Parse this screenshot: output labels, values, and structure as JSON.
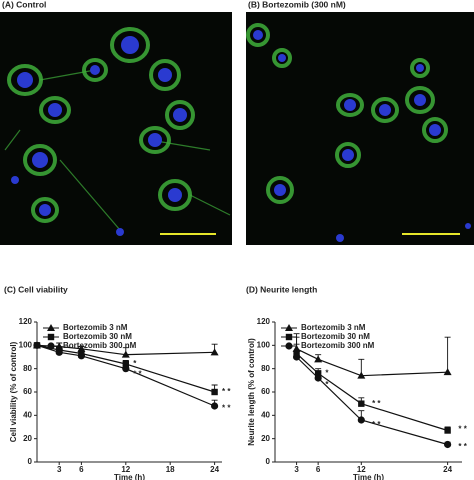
{
  "panels": [
    {
      "label": "(A) Control"
    },
    {
      "label": "(B) Bortezomib (300 nM)"
    }
  ],
  "chart_data": [
    {
      "type": "line",
      "title": "(C) Cell viability",
      "x_label": "Time (h)",
      "y_label": "Cell viability (% of control)",
      "x": [
        0,
        3,
        6,
        12,
        24
      ],
      "xlim": [
        0,
        25
      ],
      "xticks": [
        3,
        6,
        12,
        18,
        24
      ],
      "ylim": [
        0,
        120
      ],
      "yticks": [
        0,
        20,
        40,
        60,
        80,
        100,
        120
      ],
      "series": [
        {
          "name": "Bortezomib 3 nM",
          "color": "#111111",
          "marker": "triangle",
          "values": [
            100,
            99,
            97,
            92,
            94
          ],
          "errors": [
            null,
            3,
            2,
            6,
            7
          ]
        },
        {
          "name": "Bortezomib 30 nM",
          "color": "#111111",
          "marker": "square",
          "values": [
            100,
            96,
            93,
            84,
            60
          ],
          "errors": [
            null,
            2,
            2,
            3,
            6
          ]
        },
        {
          "name": "Bortezomib 300 nM",
          "color": "#111111",
          "marker": "circle",
          "values": [
            100,
            94,
            91,
            80,
            48
          ],
          "errors": [
            null,
            2,
            2,
            3,
            5
          ]
        }
      ],
      "annotations": [
        {
          "text": "*",
          "x": 13,
          "y": 84
        },
        {
          "text": "* *",
          "x": 13,
          "y": 75
        },
        {
          "text": "* *",
          "x": 25,
          "y": 60
        },
        {
          "text": "* *",
          "x": 25,
          "y": 46
        }
      ]
    },
    {
      "type": "line",
      "title": "(D) Neurite length",
      "x_label": "Time (h)",
      "y_label": "Neurite length (% of control)",
      "x": [
        3,
        6,
        12,
        24
      ],
      "xlim": [
        0,
        26
      ],
      "xticks": [
        3,
        6,
        12,
        24
      ],
      "ylim": [
        0,
        120
      ],
      "yticks": [
        0,
        20,
        40,
        60,
        80,
        100,
        120
      ],
      "series": [
        {
          "name": "Bortezomib 3 nM",
          "color": "#111111",
          "marker": "triangle",
          "values": [
            97,
            88,
            74,
            77
          ],
          "errors": [
            10,
            4,
            14,
            30
          ]
        },
        {
          "name": "Bortezomib 30 nM",
          "color": "#111111",
          "marker": "square",
          "values": [
            93,
            76,
            50,
            27
          ],
          "errors": [
            8,
            4,
            5,
            3
          ]
        },
        {
          "name": "Bortezomib 300 nM",
          "color": "#111111",
          "marker": "circle",
          "values": [
            90,
            72,
            36,
            15
          ],
          "errors": [
            20,
            5,
            8,
            2
          ]
        }
      ],
      "annotations": [
        {
          "text": "*",
          "x": 7,
          "y": 76
        },
        {
          "text": "*",
          "x": 7,
          "y": 66
        },
        {
          "text": "* *",
          "x": 13.5,
          "y": 50
        },
        {
          "text": "* *",
          "x": 13.5,
          "y": 32
        },
        {
          "text": "* *",
          "x": 25.5,
          "y": 28
        },
        {
          "text": "* *",
          "x": 25.5,
          "y": 13
        }
      ]
    }
  ]
}
